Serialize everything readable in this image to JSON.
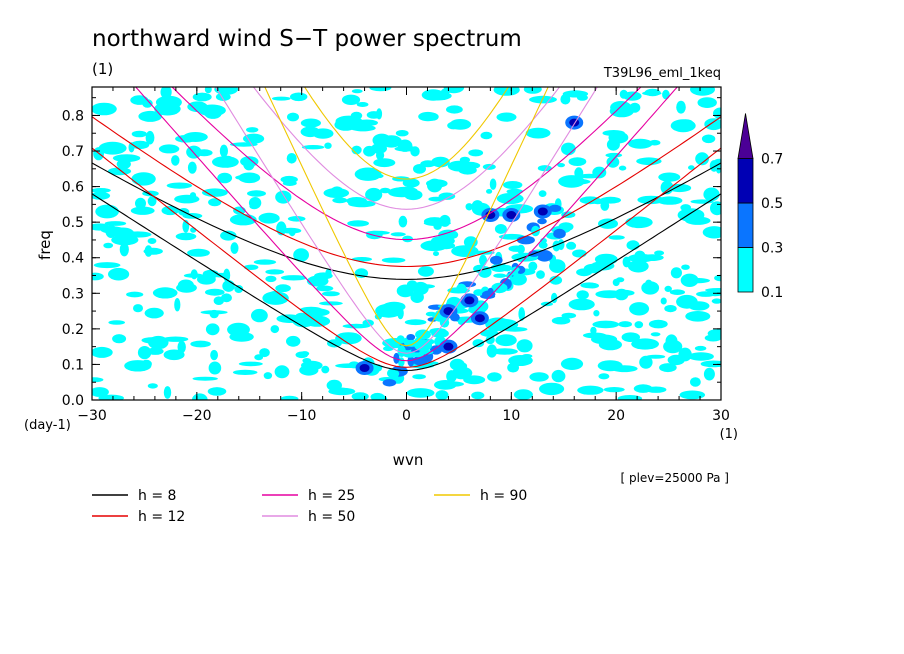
{
  "chart_data": {
    "type": "heatmap",
    "title": "northward wind S−T power spectrum",
    "subtitle_left": "(1)",
    "subtitle_right": "T39L96_eml_1keq",
    "xlabel": "wvn",
    "ylabel": "freq",
    "x_unit": "(1)",
    "y_unit": "(day-1)",
    "annotation": "[ plev=25000 Pa ]",
    "xlim": [
      -30,
      30
    ],
    "ylim": [
      0,
      0.88
    ],
    "x_ticks": [
      {
        "v": -30,
        "label": "−30"
      },
      {
        "v": -20,
        "label": "−20"
      },
      {
        "v": -10,
        "label": "−10"
      },
      {
        "v": 0,
        "label": "0"
      },
      {
        "v": 10,
        "label": "10"
      },
      {
        "v": 20,
        "label": "20"
      },
      {
        "v": 30,
        "label": "30"
      }
    ],
    "y_ticks": [
      {
        "v": 0.0,
        "label": "0.0"
      },
      {
        "v": 0.1,
        "label": "0.1"
      },
      {
        "v": 0.2,
        "label": "0.2"
      },
      {
        "v": 0.3,
        "label": "0.3"
      },
      {
        "v": 0.4,
        "label": "0.4"
      },
      {
        "v": 0.5,
        "label": "0.5"
      },
      {
        "v": 0.6,
        "label": "0.6"
      },
      {
        "v": 0.7,
        "label": "0.7"
      },
      {
        "v": 0.8,
        "label": "0.8"
      }
    ],
    "colorbar": {
      "levels": [
        {
          "label": "0.1",
          "color": "#00ffff"
        },
        {
          "label": "0.3",
          "color": "#0a75ff"
        },
        {
          "label": "0.5",
          "color": "#0000b4"
        },
        {
          "label": "0.7",
          "color": "#4b0096"
        }
      ]
    },
    "dispersion_curves": [
      {
        "name": "h =  8",
        "h": 8,
        "color": "#000000"
      },
      {
        "name": "h = 12",
        "h": 12,
        "color": "#e60000"
      },
      {
        "name": "h = 25",
        "h": 25,
        "color": "#e600a0"
      },
      {
        "name": "h = 50",
        "h": 50,
        "color": "#e08ce0"
      },
      {
        "name": "h = 90",
        "h": 90,
        "color": "#f0c800"
      }
    ],
    "strong_peaks": [
      {
        "x": -4,
        "y": 0.09,
        "level": 0.5
      },
      {
        "x": 4,
        "y": 0.25,
        "level": 0.5
      },
      {
        "x": 6,
        "y": 0.28,
        "level": 0.5
      },
      {
        "x": 7,
        "y": 0.23,
        "level": 0.5
      },
      {
        "x": 8,
        "y": 0.52,
        "level": 0.5
      },
      {
        "x": 10,
        "y": 0.52,
        "level": 0.5
      },
      {
        "x": 13,
        "y": 0.53,
        "level": 0.5
      },
      {
        "x": 4,
        "y": 0.15,
        "level": 0.5
      },
      {
        "x": 16,
        "y": 0.78,
        "level": 0.5
      }
    ]
  }
}
